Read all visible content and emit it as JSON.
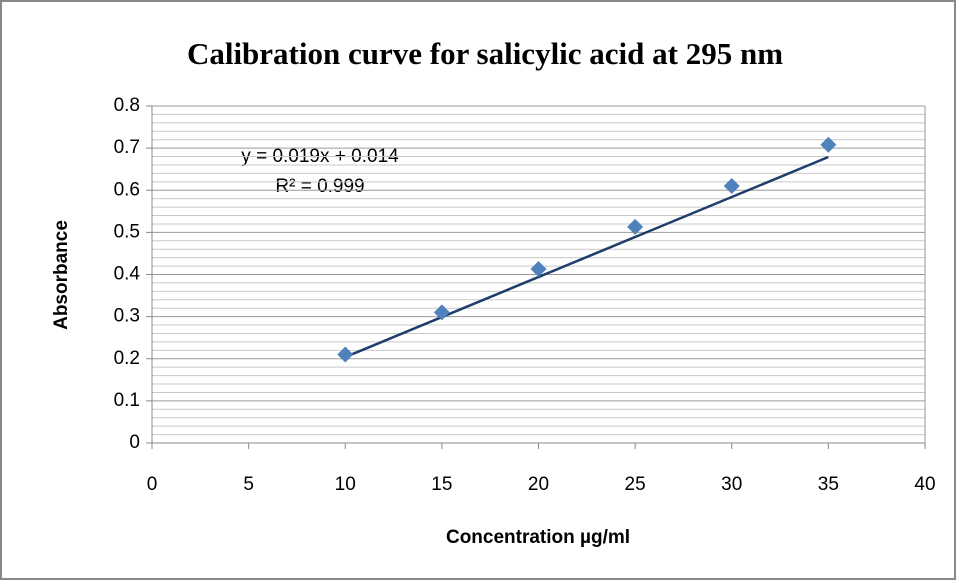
{
  "chart_data": {
    "type": "scatter",
    "title": "Calibration curve for salicylic acid at 295 nm",
    "x_label": "Concentration µg/ml",
    "y_label": "Absorbance",
    "annotations": [
      "y = 0.019x + 0.014",
      "R² = 0.999"
    ],
    "x": [
      10,
      15,
      20,
      25,
      30,
      35
    ],
    "series": [
      {
        "name": "Absorbance",
        "color": "#4f81bd",
        "values": [
          0.21,
          0.31,
          0.413,
          0.513,
          0.61,
          0.708
        ]
      }
    ],
    "trendline": {
      "slope": 0.019,
      "intercept": 0.014,
      "color": "#1f3d6b"
    },
    "xlim": [
      0,
      40
    ],
    "xticks": [
      0,
      5,
      10,
      15,
      20,
      25,
      30,
      35,
      40
    ],
    "ylim": [
      0,
      0.8
    ],
    "yticks": [
      0,
      0.1,
      0.2,
      0.3,
      0.4,
      0.5,
      0.6,
      0.7,
      0.8
    ],
    "grid": true,
    "minor_grid_per_tick": 5
  }
}
